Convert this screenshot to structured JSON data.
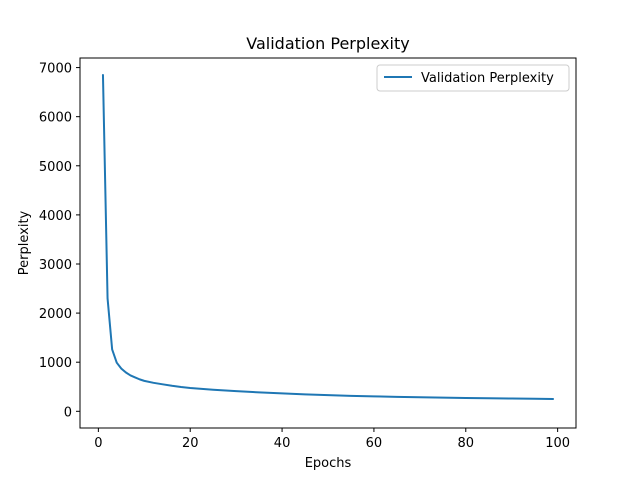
{
  "chart_data": {
    "type": "line",
    "title": "Validation Perplexity",
    "xlabel": "Epochs",
    "ylabel": "Perplexity",
    "xlim": [
      -4,
      104
    ],
    "ylim": [
      -340,
      7195
    ],
    "xticks": [
      0,
      20,
      40,
      60,
      80,
      100
    ],
    "yticks": [
      0,
      1000,
      2000,
      3000,
      4000,
      5000,
      6000,
      7000
    ],
    "grid": false,
    "legend_position": "top-right",
    "series": [
      {
        "name": "Validation Perplexity",
        "color": "#1f77b4",
        "x": [
          1,
          2,
          3,
          4,
          5,
          6,
          7,
          8,
          9,
          10,
          12,
          14,
          16,
          18,
          20,
          25,
          30,
          35,
          40,
          45,
          50,
          55,
          60,
          65,
          70,
          75,
          80,
          85,
          90,
          95,
          99
        ],
        "y": [
          6850,
          2300,
          1260,
          990,
          870,
          790,
          730,
          690,
          650,
          620,
          580,
          550,
          520,
          495,
          475,
          440,
          410,
          385,
          365,
          345,
          330,
          315,
          305,
          295,
          285,
          278,
          272,
          266,
          261,
          255,
          250
        ]
      }
    ]
  }
}
